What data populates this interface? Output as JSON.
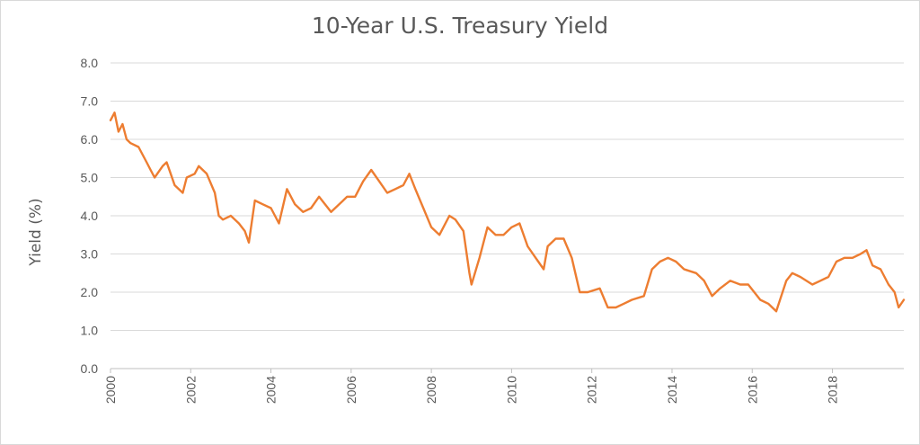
{
  "chart_data": {
    "type": "line",
    "title": "10-Year U.S. Treasury Yield",
    "xlabel": "",
    "ylabel": "Yield (%)",
    "ylim": [
      0,
      8
    ],
    "xlim": [
      2000,
      2019.78
    ],
    "grid": "horizontal",
    "y_ticks": [
      "0.0",
      "1.0",
      "2.0",
      "3.0",
      "4.0",
      "5.0",
      "6.0",
      "7.0",
      "8.0"
    ],
    "x_ticks": [
      "2000",
      "2002",
      "2004",
      "2006",
      "2008",
      "2010",
      "2012",
      "2014",
      "2016",
      "2018"
    ],
    "line_color": "#ED7D31",
    "series": [
      {
        "x": [
          2000.0,
          2000.1,
          2000.2,
          2000.3,
          2000.4,
          2000.5,
          2000.7,
          2000.9,
          2001.0,
          2001.1,
          2001.3,
          2001.4,
          2001.5,
          2001.6,
          2001.8,
          2001.9,
          2002.1,
          2002.2,
          2002.4,
          2002.6,
          2002.7,
          2002.8,
          2003.0,
          2003.2,
          2003.35,
          2003.45,
          2003.6,
          2003.8,
          2004.0,
          2004.2,
          2004.4,
          2004.6,
          2004.8,
          2005.0,
          2005.2,
          2005.5,
          2005.7,
          2005.9,
          2006.1,
          2006.3,
          2006.5,
          2006.7,
          2006.9,
          2007.1,
          2007.3,
          2007.45,
          2007.6,
          2007.8,
          2008.0,
          2008.2,
          2008.45,
          2008.6,
          2008.8,
          2008.95,
          2009.0,
          2009.2,
          2009.4,
          2009.6,
          2009.8,
          2010.0,
          2010.2,
          2010.4,
          2010.6,
          2010.8,
          2010.9,
          2011.1,
          2011.3,
          2011.5,
          2011.7,
          2011.9,
          2012.2,
          2012.4,
          2012.6,
          2012.8,
          2013.0,
          2013.3,
          2013.5,
          2013.7,
          2013.9,
          2014.1,
          2014.3,
          2014.6,
          2014.8,
          2015.0,
          2015.2,
          2015.45,
          2015.7,
          2015.9,
          2016.2,
          2016.4,
          2016.6,
          2016.85,
          2017.0,
          2017.2,
          2017.5,
          2017.7,
          2017.9,
          2018.1,
          2018.3,
          2018.5,
          2018.7,
          2018.85,
          2019.0,
          2019.2,
          2019.4,
          2019.55,
          2019.65,
          2019.78
        ],
        "y": [
          6.5,
          6.7,
          6.2,
          6.4,
          6.0,
          5.9,
          5.8,
          5.4,
          5.2,
          5.0,
          5.3,
          5.4,
          5.1,
          4.8,
          4.6,
          5.0,
          5.1,
          5.3,
          5.1,
          4.6,
          4.0,
          3.9,
          4.0,
          3.8,
          3.6,
          3.3,
          4.4,
          4.3,
          4.2,
          3.8,
          4.7,
          4.3,
          4.1,
          4.2,
          4.5,
          4.1,
          4.3,
          4.5,
          4.5,
          4.9,
          5.2,
          4.9,
          4.6,
          4.7,
          4.8,
          5.1,
          4.7,
          4.2,
          3.7,
          3.5,
          4.0,
          3.9,
          3.6,
          2.5,
          2.2,
          2.9,
          3.7,
          3.5,
          3.5,
          3.7,
          3.8,
          3.2,
          2.9,
          2.6,
          3.2,
          3.4,
          3.4,
          2.9,
          2.0,
          2.0,
          2.1,
          1.6,
          1.6,
          1.7,
          1.8,
          1.9,
          2.6,
          2.8,
          2.9,
          2.8,
          2.6,
          2.5,
          2.3,
          1.9,
          2.1,
          2.3,
          2.2,
          2.2,
          1.8,
          1.7,
          1.5,
          2.3,
          2.5,
          2.4,
          2.2,
          2.3,
          2.4,
          2.8,
          2.9,
          2.9,
          3.0,
          3.1,
          2.7,
          2.6,
          2.2,
          2.0,
          1.6,
          1.8
        ]
      }
    ]
  }
}
